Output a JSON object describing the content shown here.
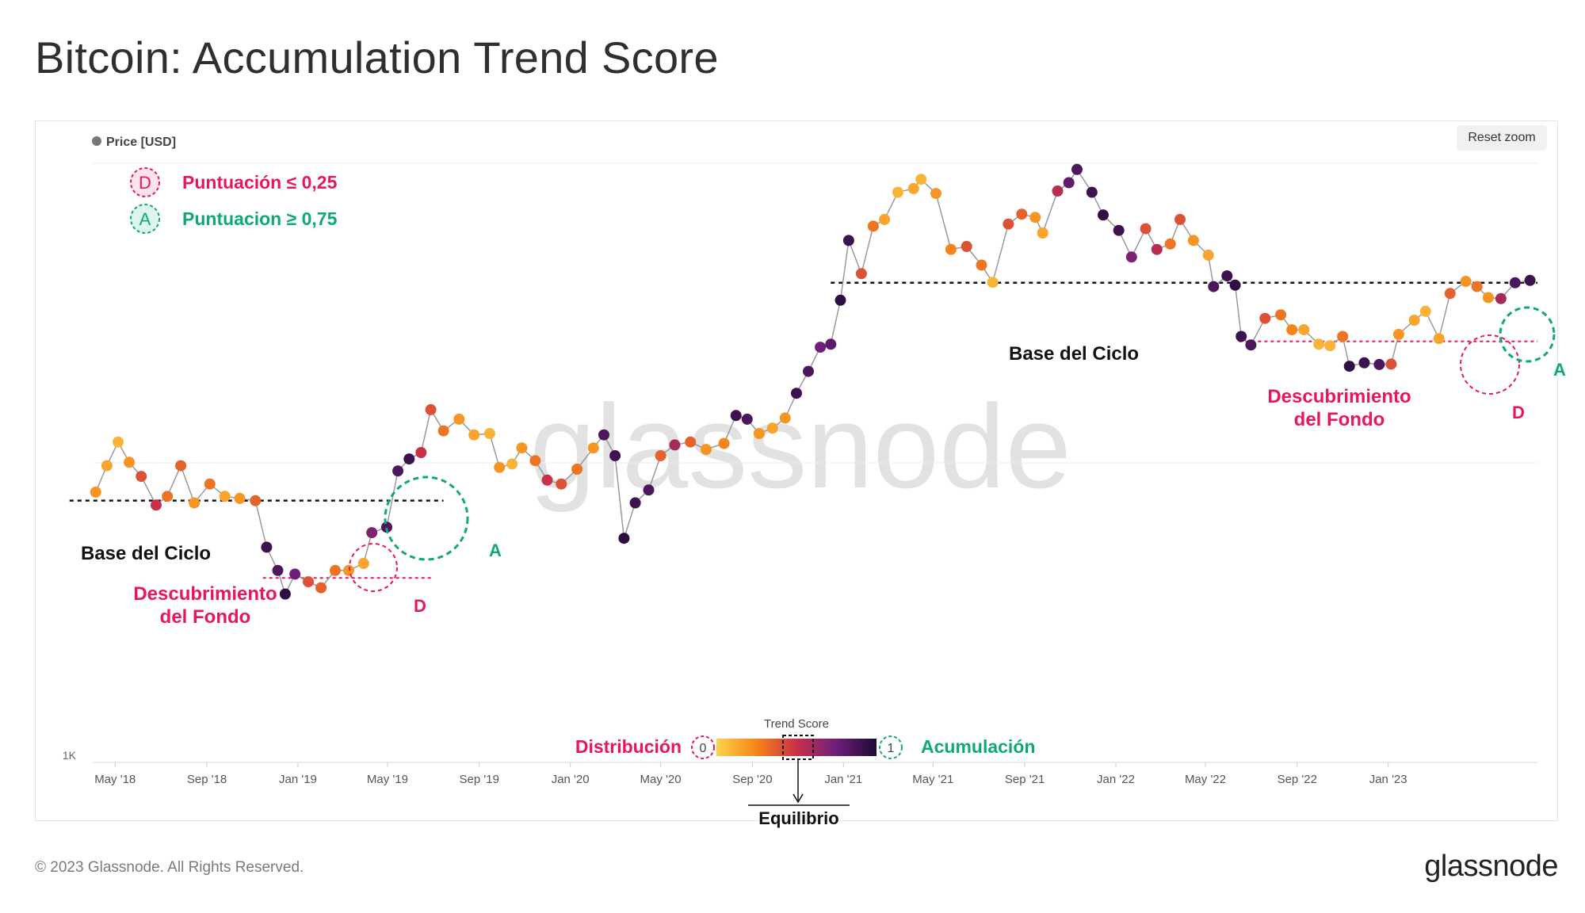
{
  "header": {
    "title": "Bitcoin: Accumulation Trend Score"
  },
  "toolbar": {
    "reset_zoom_label": "Reset zoom"
  },
  "legend": {
    "series_label": "Price [USD]"
  },
  "key": {
    "d_marker": "D",
    "d_text": "Puntuación ≤ 0,25",
    "a_marker": "A",
    "a_text": "Puntuacion ≥ 0,75"
  },
  "annotations": {
    "base_left": "Base del Ciclo",
    "base_right": "Base del Ciclo",
    "bottom_left_line1": "Descubrimiento",
    "bottom_left_line2": "del Fondo",
    "bottom_right_line1": "Descubrimiento",
    "bottom_right_line2": "del Fondo",
    "a_left": "A",
    "a_right": "A",
    "d_left": "D",
    "d_right": "D"
  },
  "colorbar": {
    "title": "Trend Score",
    "left_label": "Distribución",
    "right_label": "Acumulación",
    "min_label": "0",
    "max_label": "1",
    "equilibrium_label": "Equilibrio",
    "colors": [
      "#fcd34d",
      "#f58518",
      "#c9304a",
      "#6d1f7a",
      "#1d0b33"
    ]
  },
  "watermark": "glassnode",
  "footer": {
    "copyright": "© 2023 Glassnode. All Rights Reserved.",
    "logo": "glassnode"
  },
  "colors": {
    "distribution": "#e8175d",
    "accumulation": "#0fa878",
    "baseline": "#111111"
  },
  "chart_data": {
    "type": "scatter",
    "title": "Bitcoin: Accumulation Trend Score",
    "series_name": "Price [USD]",
    "y_axis": {
      "scale": "log",
      "tick_labels": [
        "1K"
      ]
    },
    "x_tick_labels": [
      "May '18",
      "Sep '18",
      "Jan '19",
      "May '19",
      "Sep '19",
      "Jan '20",
      "May '20",
      "Sep '20",
      "Jan '21",
      "May '21",
      "Sep '21",
      "Jan '22",
      "May '22",
      "Sep '22",
      "Jan '23"
    ],
    "x_range": [
      "2018-04-01",
      "2023-07-20"
    ],
    "y_range": [
      1000,
      70000
    ],
    "color_scale": {
      "name": "Trend Score",
      "min": 0,
      "max": 1
    },
    "reference_levels": [
      {
        "label": "Base del Ciclo",
        "value": 6400,
        "from": "2018-03-01",
        "to": "2019-07-15",
        "style": "dashed"
      },
      {
        "label": "Descubrimiento del Fondo",
        "value": 3700,
        "from": "2018-11-15",
        "to": "2019-07-01",
        "style": "dashed"
      },
      {
        "label": "Base del Ciclo",
        "value": 30000,
        "from": "2020-12-15",
        "to": "2023-07-20",
        "style": "dashed"
      },
      {
        "label": "Descubrimiento del Fondo",
        "value": 19800,
        "from": "2022-06-15",
        "to": "2023-07-20",
        "style": "dashed"
      }
    ],
    "points": [
      {
        "date": "2018-04-05",
        "price": 6800,
        "score": 0.2
      },
      {
        "date": "2018-04-20",
        "price": 8200,
        "score": 0.15
      },
      {
        "date": "2018-05-05",
        "price": 9700,
        "score": 0.1
      },
      {
        "date": "2018-05-20",
        "price": 8400,
        "score": 0.2
      },
      {
        "date": "2018-06-05",
        "price": 7600,
        "score": 0.4
      },
      {
        "date": "2018-06-25",
        "price": 6200,
        "score": 0.5
      },
      {
        "date": "2018-07-10",
        "price": 6600,
        "score": 0.3
      },
      {
        "date": "2018-07-28",
        "price": 8200,
        "score": 0.35
      },
      {
        "date": "2018-08-15",
        "price": 6300,
        "score": 0.2
      },
      {
        "date": "2018-09-05",
        "price": 7200,
        "score": 0.3
      },
      {
        "date": "2018-09-25",
        "price": 6600,
        "score": 0.15
      },
      {
        "date": "2018-10-15",
        "price": 6500,
        "score": 0.2
      },
      {
        "date": "2018-11-05",
        "price": 6400,
        "score": 0.35
      },
      {
        "date": "2018-11-20",
        "price": 4600,
        "score": 0.9
      },
      {
        "date": "2018-12-05",
        "price": 3900,
        "score": 0.85
      },
      {
        "date": "2018-12-15",
        "price": 3300,
        "score": 0.95
      },
      {
        "date": "2018-12-28",
        "price": 3800,
        "score": 0.75
      },
      {
        "date": "2019-01-15",
        "price": 3600,
        "score": 0.4
      },
      {
        "date": "2019-02-01",
        "price": 3450,
        "score": 0.35
      },
      {
        "date": "2019-02-20",
        "price": 3900,
        "score": 0.3
      },
      {
        "date": "2019-03-10",
        "price": 3900,
        "score": 0.2
      },
      {
        "date": "2019-03-30",
        "price": 4100,
        "score": 0.15
      },
      {
        "date": "2019-04-10",
        "price": 5100,
        "score": 0.7
      },
      {
        "date": "2019-04-30",
        "price": 5300,
        "score": 0.85
      },
      {
        "date": "2019-05-15",
        "price": 7900,
        "score": 0.85
      },
      {
        "date": "2019-05-30",
        "price": 8600,
        "score": 0.9
      },
      {
        "date": "2019-06-15",
        "price": 9000,
        "score": 0.5
      },
      {
        "date": "2019-06-28",
        "price": 12200,
        "score": 0.4
      },
      {
        "date": "2019-07-15",
        "price": 10500,
        "score": 0.3
      },
      {
        "date": "2019-08-05",
        "price": 11400,
        "score": 0.2
      },
      {
        "date": "2019-08-25",
        "price": 10200,
        "score": 0.15
      },
      {
        "date": "2019-09-15",
        "price": 10300,
        "score": 0.1
      },
      {
        "date": "2019-09-28",
        "price": 8100,
        "score": 0.2
      },
      {
        "date": "2019-10-15",
        "price": 8300,
        "score": 0.1
      },
      {
        "date": "2019-10-28",
        "price": 9300,
        "score": 0.2
      },
      {
        "date": "2019-11-15",
        "price": 8500,
        "score": 0.3
      },
      {
        "date": "2019-12-01",
        "price": 7400,
        "score": 0.5
      },
      {
        "date": "2019-12-20",
        "price": 7200,
        "score": 0.4
      },
      {
        "date": "2020-01-10",
        "price": 8000,
        "score": 0.3
      },
      {
        "date": "2020-02-01",
        "price": 9300,
        "score": 0.2
      },
      {
        "date": "2020-02-15",
        "price": 10200,
        "score": 0.85
      },
      {
        "date": "2020-03-01",
        "price": 8800,
        "score": 0.9
      },
      {
        "date": "2020-03-13",
        "price": 4900,
        "score": 0.95
      },
      {
        "date": "2020-03-28",
        "price": 6300,
        "score": 0.9
      },
      {
        "date": "2020-04-15",
        "price": 6900,
        "score": 0.85
      },
      {
        "date": "2020-05-01",
        "price": 8800,
        "score": 0.35
      },
      {
        "date": "2020-05-20",
        "price": 9500,
        "score": 0.6
      },
      {
        "date": "2020-06-10",
        "price": 9700,
        "score": 0.35
      },
      {
        "date": "2020-07-01",
        "price": 9200,
        "score": 0.2
      },
      {
        "date": "2020-07-25",
        "price": 9600,
        "score": 0.25
      },
      {
        "date": "2020-08-10",
        "price": 11700,
        "score": 0.9
      },
      {
        "date": "2020-08-25",
        "price": 11400,
        "score": 0.85
      },
      {
        "date": "2020-09-10",
        "price": 10300,
        "score": 0.2
      },
      {
        "date": "2020-09-28",
        "price": 10700,
        "score": 0.15
      },
      {
        "date": "2020-10-15",
        "price": 11500,
        "score": 0.2
      },
      {
        "date": "2020-10-30",
        "price": 13700,
        "score": 0.9
      },
      {
        "date": "2020-11-15",
        "price": 16000,
        "score": 0.85
      },
      {
        "date": "2020-12-01",
        "price": 19000,
        "score": 0.75
      },
      {
        "date": "2020-12-15",
        "price": 19400,
        "score": 0.8
      },
      {
        "date": "2020-12-28",
        "price": 26500,
        "score": 0.95
      },
      {
        "date": "2021-01-08",
        "price": 40500,
        "score": 0.9
      },
      {
        "date": "2021-01-25",
        "price": 32000,
        "score": 0.4
      },
      {
        "date": "2021-02-10",
        "price": 44800,
        "score": 0.3
      },
      {
        "date": "2021-02-25",
        "price": 47000,
        "score": 0.15
      },
      {
        "date": "2021-03-15",
        "price": 57000,
        "score": 0.1
      },
      {
        "date": "2021-04-05",
        "price": 58500,
        "score": 0.15
      },
      {
        "date": "2021-04-15",
        "price": 62500,
        "score": 0.1
      },
      {
        "date": "2021-05-05",
        "price": 56500,
        "score": 0.2
      },
      {
        "date": "2021-05-25",
        "price": 38000,
        "score": 0.25
      },
      {
        "date": "2021-06-15",
        "price": 38800,
        "score": 0.4
      },
      {
        "date": "2021-07-05",
        "price": 34000,
        "score": 0.3
      },
      {
        "date": "2021-07-20",
        "price": 30100,
        "score": 0.1
      },
      {
        "date": "2021-08-10",
        "price": 45500,
        "score": 0.4
      },
      {
        "date": "2021-08-28",
        "price": 48800,
        "score": 0.35
      },
      {
        "date": "2021-09-15",
        "price": 47700,
        "score": 0.2
      },
      {
        "date": "2021-09-25",
        "price": 42700,
        "score": 0.15
      },
      {
        "date": "2021-10-15",
        "price": 57500,
        "score": 0.55
      },
      {
        "date": "2021-10-30",
        "price": 61000,
        "score": 0.8
      },
      {
        "date": "2021-11-10",
        "price": 67000,
        "score": 0.85
      },
      {
        "date": "2021-11-30",
        "price": 57000,
        "score": 0.9
      },
      {
        "date": "2021-12-15",
        "price": 48500,
        "score": 0.95
      },
      {
        "date": "2022-01-05",
        "price": 43500,
        "score": 0.9
      },
      {
        "date": "2022-01-22",
        "price": 36000,
        "score": 0.7
      },
      {
        "date": "2022-02-10",
        "price": 44000,
        "score": 0.4
      },
      {
        "date": "2022-02-25",
        "price": 38000,
        "score": 0.55
      },
      {
        "date": "2022-03-15",
        "price": 39500,
        "score": 0.3
      },
      {
        "date": "2022-03-28",
        "price": 47000,
        "score": 0.4
      },
      {
        "date": "2022-04-15",
        "price": 40500,
        "score": 0.2
      },
      {
        "date": "2022-05-05",
        "price": 36500,
        "score": 0.15
      },
      {
        "date": "2022-05-12",
        "price": 29200,
        "score": 0.85
      },
      {
        "date": "2022-05-30",
        "price": 31500,
        "score": 0.9
      },
      {
        "date": "2022-06-10",
        "price": 29500,
        "score": 0.95
      },
      {
        "date": "2022-06-18",
        "price": 20500,
        "score": 0.9
      },
      {
        "date": "2022-07-01",
        "price": 19300,
        "score": 0.85
      },
      {
        "date": "2022-07-20",
        "price": 23300,
        "score": 0.4
      },
      {
        "date": "2022-08-10",
        "price": 23900,
        "score": 0.3
      },
      {
        "date": "2022-08-25",
        "price": 21500,
        "score": 0.25
      },
      {
        "date": "2022-09-10",
        "price": 21500,
        "score": 0.15
      },
      {
        "date": "2022-09-30",
        "price": 19400,
        "score": 0.1
      },
      {
        "date": "2022-10-15",
        "price": 19200,
        "score": 0.1
      },
      {
        "date": "2022-11-01",
        "price": 20500,
        "score": 0.3
      },
      {
        "date": "2022-11-10",
        "price": 16600,
        "score": 0.95
      },
      {
        "date": "2022-11-30",
        "price": 17000,
        "score": 0.9
      },
      {
        "date": "2022-12-20",
        "price": 16800,
        "score": 0.85
      },
      {
        "date": "2023-01-05",
        "price": 16850,
        "score": 0.4
      },
      {
        "date": "2023-01-15",
        "price": 20800,
        "score": 0.2
      },
      {
        "date": "2023-02-05",
        "price": 23000,
        "score": 0.15
      },
      {
        "date": "2023-02-20",
        "price": 24500,
        "score": 0.1
      },
      {
        "date": "2023-03-10",
        "price": 20200,
        "score": 0.15
      },
      {
        "date": "2023-03-25",
        "price": 27800,
        "score": 0.35
      },
      {
        "date": "2023-04-15",
        "price": 30300,
        "score": 0.2
      },
      {
        "date": "2023-04-30",
        "price": 29200,
        "score": 0.3
      },
      {
        "date": "2023-05-15",
        "price": 27000,
        "score": 0.2
      },
      {
        "date": "2023-06-01",
        "price": 26800,
        "score": 0.6
      },
      {
        "date": "2023-06-20",
        "price": 30000,
        "score": 0.85
      },
      {
        "date": "2023-07-10",
        "price": 30500,
        "score": 0.9
      }
    ]
  }
}
